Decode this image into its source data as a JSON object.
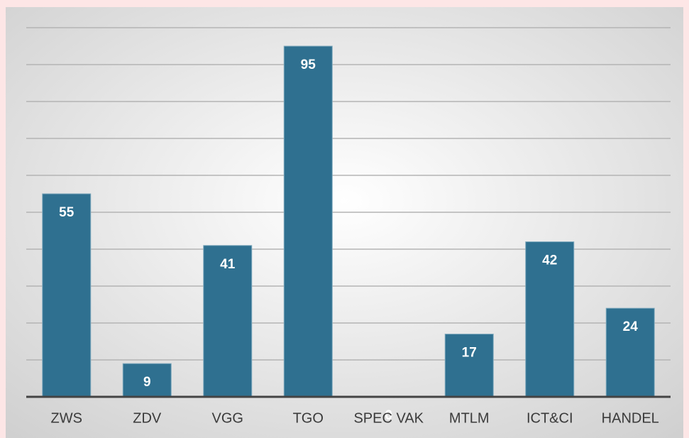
{
  "chart_data": {
    "type": "bar",
    "categories": [
      "ZWS",
      "ZDV",
      "VGG",
      "TGO",
      "SPEC VAK",
      "MTLM",
      "ICT&CI",
      "HANDEL"
    ],
    "values": [
      55,
      9,
      41,
      95,
      0,
      17,
      42,
      24
    ],
    "color": "#2f7090",
    "ylim": [
      0,
      100
    ],
    "yticks": [
      0,
      10,
      20,
      30,
      40,
      50,
      60,
      70,
      80,
      90,
      100
    ],
    "grid": true
  }
}
